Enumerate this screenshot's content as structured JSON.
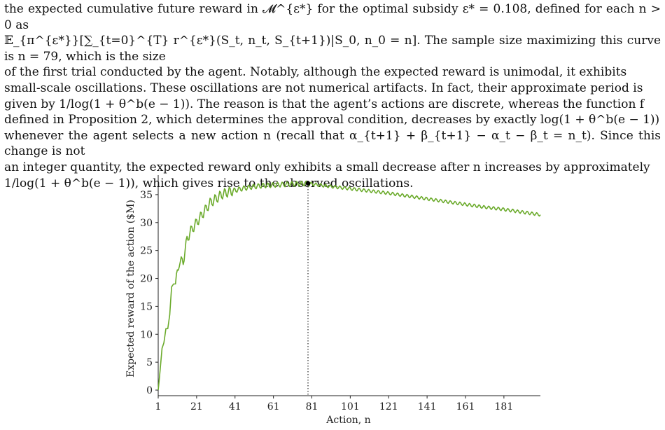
{
  "text": {
    "line1": "the expected cumulative future reward in 𝓜^{ε*} for the optimal subsidy ε* = 0.108, defined for each n > 0 as",
    "line2": "𝔼_{π^{ε*}}[∑_{t=0}^{T} r^{ε*}(S_t, n_t, S_{t+1})|S_0, n_0 = n]. The sample size maximizing this curve is n = 79, which is the size",
    "line3": "of the first trial conducted by the agent. Notably, although the expected reward is unimodal, it exhibits",
    "line4": "small-scale oscillations. These oscillations are not numerical artifacts. In fact, their approximate period is",
    "line5": "given by 1/log(1 + θ^b(e − 1)). The reason is that the agent’s actions are discrete, whereas the function f",
    "line6": "defined in Proposition 2, which determines the approval condition, decreases by exactly log(1 + θ^b(e − 1))",
    "line7": "whenever the agent selects a new action n (recall that α_{t+1} + β_{t+1} − α_t − β_t = n_t). Since this change is not",
    "line8": "an integer quantity, the expected reward only exhibits a small decrease after n increases by approximately",
    "line9": "1/log(1 + θ^b(e − 1)), which gives rise to the observed oscillations."
  },
  "chart_data": {
    "type": "line",
    "xlabel": "Action, n",
    "ylabel": "Expected reward of the action ($M)",
    "xlim": [
      1,
      200
    ],
    "ylim": [
      -1,
      38.5
    ],
    "xticks": [
      1,
      21,
      41,
      61,
      81,
      101,
      121,
      141,
      161,
      181
    ],
    "yticks": [
      0,
      5,
      10,
      15,
      20,
      25,
      30,
      35
    ],
    "grid": false,
    "vline_x": 79,
    "marker": {
      "x": 79,
      "y": 37
    },
    "line_color": "#6aaa2a",
    "series": [
      {
        "x": [
          1,
          2,
          3,
          4,
          5,
          6,
          7,
          8,
          9,
          10,
          12,
          14,
          16,
          18,
          20,
          22,
          24,
          26,
          28,
          30,
          32,
          34,
          36,
          38,
          40,
          45,
          50,
          55,
          60,
          65,
          70,
          75,
          79,
          85,
          90,
          100,
          110,
          120,
          130,
          140,
          150,
          160,
          170,
          180,
          190,
          200
        ],
        "values": [
          0,
          3.5,
          7.5,
          8.5,
          11,
          11,
          13.5,
          18.5,
          19,
          19,
          23,
          23,
          27,
          28.5,
          29.5,
          30.5,
          31.5,
          32.5,
          33.5,
          34,
          34.5,
          35,
          35.3,
          35.5,
          35.7,
          36.1,
          36.4,
          36.6,
          36.7,
          36.8,
          36.9,
          36.95,
          37,
          36.7,
          36.5,
          36.1,
          35.7,
          35.3,
          34.8,
          34.3,
          33.8,
          33.3,
          32.8,
          32.4,
          31.9,
          31.4
        ]
      }
    ]
  }
}
